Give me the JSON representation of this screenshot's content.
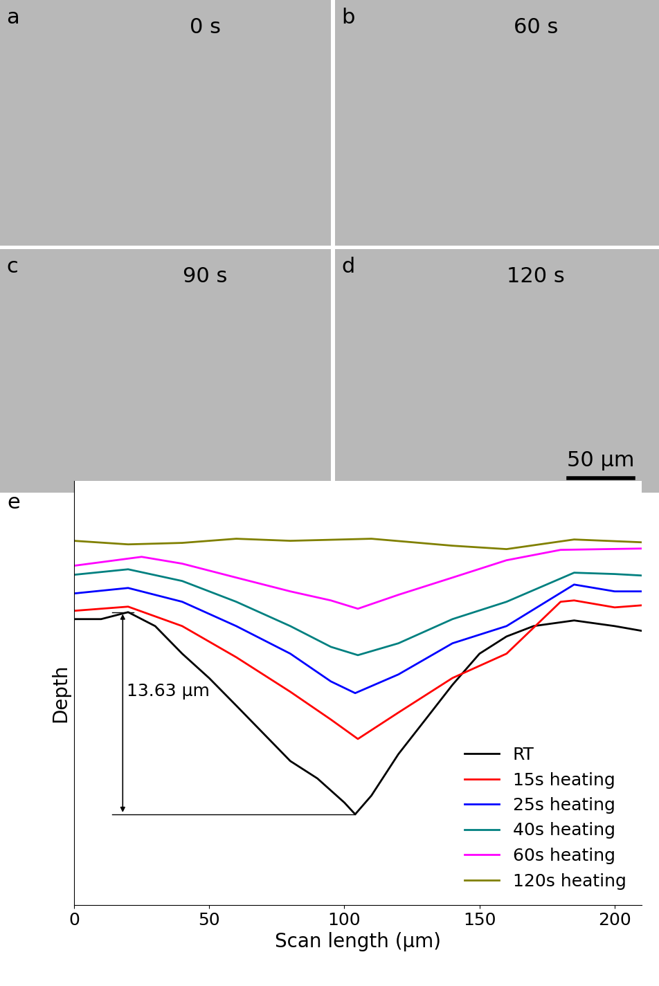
{
  "panels": [
    {
      "label": "a",
      "time": "0 s"
    },
    {
      "label": "b",
      "time": "60 s"
    },
    {
      "label": "c",
      "time": "90 s"
    },
    {
      "label": "d",
      "time": "120 s"
    }
  ],
  "scale_bar": "50 μm",
  "chart_data": {
    "type": "line",
    "panel_label": "e",
    "x_label": "Scan length (μm)",
    "y_label": "Depth",
    "xlim": [
      0,
      210
    ],
    "xticks": [
      0,
      50,
      100,
      150,
      200
    ],
    "ylim": [
      0,
      28.6
    ],
    "yticks": [],
    "tick_labels": "x",
    "legend": "lower right",
    "annotation": {
      "text": "13.63 μm",
      "x": 18,
      "y_top": 19.75,
      "y_bottom": 6.12
    },
    "series": [
      {
        "name": "RT",
        "color": "#000000",
        "x": [
          0,
          10,
          20,
          30,
          40,
          50,
          60,
          70,
          80,
          90,
          100,
          104,
          110,
          120,
          130,
          140,
          150,
          160,
          170,
          185,
          200,
          210
        ],
        "values": [
          19.28,
          19.28,
          19.75,
          18.81,
          16.95,
          15.3,
          13.45,
          11.58,
          9.71,
          8.54,
          6.91,
          6.12,
          7.38,
          10.18,
          12.51,
          14.85,
          16.95,
          18.11,
          18.81,
          19.19,
          18.81,
          18.49
        ]
      },
      {
        "name": "15s heating",
        "color": "#ff0000",
        "x": [
          0,
          20,
          40,
          60,
          80,
          95,
          105,
          120,
          140,
          160,
          180,
          185,
          200,
          210
        ],
        "values": [
          19.84,
          20.12,
          18.81,
          16.71,
          14.38,
          12.51,
          11.2,
          12.98,
          15.31,
          16.95,
          20.45,
          20.54,
          20.07,
          20.21
        ]
      },
      {
        "name": "25s heating",
        "color": "#0000ff",
        "x": [
          0,
          20,
          40,
          60,
          80,
          95,
          104,
          120,
          140,
          160,
          185,
          200,
          210
        ],
        "values": [
          21.01,
          21.38,
          20.45,
          18.81,
          16.95,
          15.08,
          14.29,
          15.55,
          17.65,
          18.81,
          21.61,
          21.15,
          21.15
        ]
      },
      {
        "name": "40s heating",
        "color": "#008080",
        "x": [
          0,
          20,
          40,
          60,
          80,
          95,
          105,
          120,
          140,
          160,
          185,
          200,
          210
        ],
        "values": [
          22.27,
          22.64,
          21.85,
          20.45,
          18.81,
          17.41,
          16.85,
          17.65,
          19.28,
          20.45,
          22.41,
          22.32,
          22.22
        ]
      },
      {
        "name": "60s heating",
        "color": "#ff00ff",
        "x": [
          0,
          25,
          40,
          60,
          80,
          95,
          105,
          120,
          140,
          160,
          180,
          210
        ],
        "values": [
          22.88,
          23.48,
          23.02,
          22.08,
          21.15,
          20.54,
          19.98,
          20.92,
          22.08,
          23.25,
          23.95,
          24.04
        ]
      },
      {
        "name": "120s heating",
        "color": "#808000",
        "x": [
          0,
          20,
          40,
          60,
          80,
          110,
          140,
          160,
          185,
          210
        ],
        "values": [
          24.56,
          24.32,
          24.42,
          24.7,
          24.56,
          24.7,
          24.23,
          24.0,
          24.65,
          24.46
        ]
      }
    ]
  }
}
